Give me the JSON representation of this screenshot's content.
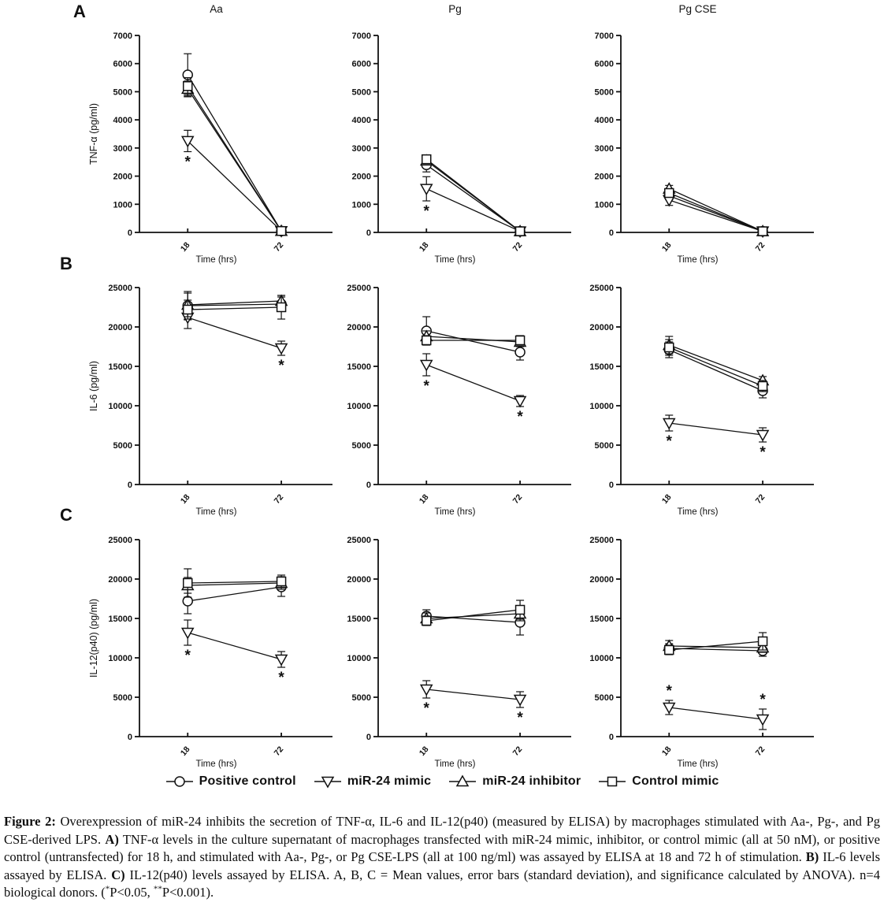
{
  "figure": {
    "panel_letters": [
      "A",
      "B",
      "C"
    ]
  },
  "legend": {
    "items": [
      {
        "label": "Positive control",
        "marker": "circle"
      },
      {
        "label": "miR-24 mimic",
        "marker": "triangle-down"
      },
      {
        "label": "miR-24 inhibitor",
        "marker": "triangle-up"
      },
      {
        "label": "Control mimic",
        "marker": "square"
      }
    ]
  },
  "caption": {
    "segments": [
      {
        "t": "Figure 2: ",
        "b": 1
      },
      {
        "t": "Overexpression of miR-24 inhibits the secretion of TNF-α, IL-6 and IL-12(p40) (measured by ELISA) by macrophages stimulated with Aa-, Pg-, and Pg CSE-derived LPS. "
      },
      {
        "t": "A)",
        "b": 1
      },
      {
        "t": " TNF-α levels in the culture supernatant of macrophages transfected with miR-24 mimic, inhibitor, or control mimic (all at 50 nM), or positive control (untransfected) for 18 h, and stimulated with Aa-, Pg-, or Pg CSE-LPS (all at 100 ng/ml) was assayed by ELISA at 18 and 72 h of stimulation. "
      },
      {
        "t": "B)",
        "b": 1
      },
      {
        "t": " IL-6 levels assayed by ELISA. "
      },
      {
        "t": "C)",
        "b": 1
      },
      {
        "t": " IL-12(p40) levels assayed by ELISA. A, B, C = Mean values, error bars (standard deviation), and significance calculated by ANOVA). n=4 biological donors. ("
      },
      {
        "t": "*",
        "sup": 1
      },
      {
        "t": "P<0.05, "
      },
      {
        "t": "**",
        "sup": 1
      },
      {
        "t": "P<0.001)."
      }
    ]
  },
  "chart_data": [
    {
      "id": "tnf-aa",
      "type": "line",
      "title": "Aa",
      "ylabel": "TNF-α (pg/ml)",
      "xlabel": "Time (hrs)",
      "categories": [
        "18",
        "72"
      ],
      "ylim": [
        0,
        7000
      ],
      "ystep": 1000,
      "grid": false,
      "series": [
        {
          "name": "Positive control",
          "marker": "circle",
          "values": [
            5600,
            50
          ],
          "errors": [
            750,
            60
          ],
          "sig": [
            null,
            null
          ]
        },
        {
          "name": "miR-24 mimic",
          "marker": "triangle-down",
          "values": [
            3250,
            50
          ],
          "errors": [
            380,
            60
          ],
          "sig": [
            "below",
            null
          ]
        },
        {
          "name": "miR-24 inhibitor",
          "marker": "triangle-up",
          "values": [
            5100,
            50
          ],
          "errors": [
            280,
            60
          ],
          "sig": [
            null,
            null
          ]
        },
        {
          "name": "Control mimic",
          "marker": "square",
          "values": [
            5200,
            50
          ],
          "errors": [
            300,
            60
          ],
          "sig": [
            null,
            null
          ]
        }
      ]
    },
    {
      "id": "tnf-pg",
      "type": "line",
      "title": "Pg",
      "ylabel": "",
      "xlabel": "Time (hrs)",
      "categories": [
        "18",
        "72"
      ],
      "ylim": [
        0,
        7000
      ],
      "ystep": 1000,
      "grid": false,
      "series": [
        {
          "name": "Positive control",
          "marker": "circle",
          "values": [
            2400,
            40
          ],
          "errors": [
            250,
            50
          ],
          "sig": [
            null,
            null
          ]
        },
        {
          "name": "miR-24 mimic",
          "marker": "triangle-down",
          "values": [
            1550,
            40
          ],
          "errors": [
            430,
            50
          ],
          "sig": [
            "below",
            null
          ]
        },
        {
          "name": "miR-24 inhibitor",
          "marker": "triangle-up",
          "values": [
            2550,
            40
          ],
          "errors": [
            150,
            50
          ],
          "sig": [
            null,
            null
          ]
        },
        {
          "name": "Control mimic",
          "marker": "square",
          "values": [
            2600,
            40
          ],
          "errors": [
            130,
            50
          ],
          "sig": [
            null,
            null
          ]
        }
      ]
    },
    {
      "id": "tnf-pgcse",
      "type": "line",
      "title": "Pg CSE",
      "ylabel": "",
      "xlabel": "Time (hrs)",
      "categories": [
        "18",
        "72"
      ],
      "ylim": [
        0,
        7000
      ],
      "ystep": 1000,
      "grid": false,
      "series": [
        {
          "name": "Positive control",
          "marker": "circle",
          "values": [
            1300,
            40
          ],
          "errors": [
            140,
            50
          ],
          "sig": [
            null,
            null
          ]
        },
        {
          "name": "miR-24 mimic",
          "marker": "triangle-down",
          "values": [
            1150,
            40
          ],
          "errors": [
            190,
            50
          ],
          "sig": [
            null,
            null
          ]
        },
        {
          "name": "miR-24 inhibitor",
          "marker": "triangle-up",
          "values": [
            1550,
            40
          ],
          "errors": [
            120,
            50
          ],
          "sig": [
            null,
            null
          ]
        },
        {
          "name": "Control mimic",
          "marker": "square",
          "values": [
            1400,
            40
          ],
          "errors": [
            110,
            50
          ],
          "sig": [
            null,
            null
          ]
        }
      ]
    },
    {
      "id": "il6-aa",
      "type": "line",
      "title": "",
      "ylabel": "IL-6 (pg/ml)",
      "xlabel": "Time (hrs)",
      "categories": [
        "18",
        "72"
      ],
      "ylim": [
        0,
        25000
      ],
      "ystep": 5000,
      "grid": false,
      "series": [
        {
          "name": "Positive control",
          "marker": "circle",
          "values": [
            22700,
            22900
          ],
          "errors": [
            1800,
            900
          ],
          "sig": [
            null,
            null
          ]
        },
        {
          "name": "miR-24 mimic",
          "marker": "triangle-down",
          "values": [
            21200,
            17300
          ],
          "errors": [
            1400,
            900
          ],
          "sig": [
            null,
            "below"
          ]
        },
        {
          "name": "miR-24 inhibitor",
          "marker": "triangle-up",
          "values": [
            22800,
            23300
          ],
          "errors": [
            1500,
            700
          ],
          "sig": [
            null,
            null
          ]
        },
        {
          "name": "Control mimic",
          "marker": "square",
          "values": [
            22200,
            22500
          ],
          "errors": [
            1200,
            1500
          ],
          "sig": [
            null,
            null
          ]
        }
      ]
    },
    {
      "id": "il6-pg",
      "type": "line",
      "title": "",
      "ylabel": "",
      "xlabel": "Time (hrs)",
      "categories": [
        "18",
        "72"
      ],
      "ylim": [
        0,
        25000
      ],
      "ystep": 5000,
      "grid": false,
      "series": [
        {
          "name": "Positive control",
          "marker": "circle",
          "values": [
            19500,
            16800
          ],
          "errors": [
            1800,
            1000
          ],
          "sig": [
            null,
            null
          ]
        },
        {
          "name": "miR-24 mimic",
          "marker": "triangle-down",
          "values": [
            15200,
            10600
          ],
          "errors": [
            1400,
            700
          ],
          "sig": [
            "below",
            "below"
          ]
        },
        {
          "name": "miR-24 inhibitor",
          "marker": "triangle-up",
          "values": [
            18800,
            18100
          ],
          "errors": [
            700,
            600
          ],
          "sig": [
            null,
            null
          ]
        },
        {
          "name": "Control mimic",
          "marker": "square",
          "values": [
            18300,
            18300
          ],
          "errors": [
            600,
            600
          ],
          "sig": [
            null,
            null
          ]
        }
      ]
    },
    {
      "id": "il6-pgcse",
      "type": "line",
      "title": "",
      "ylabel": "",
      "xlabel": "Time (hrs)",
      "categories": [
        "18",
        "72"
      ],
      "ylim": [
        0,
        25000
      ],
      "ystep": 5000,
      "grid": false,
      "series": [
        {
          "name": "Positive control",
          "marker": "circle",
          "values": [
            17100,
            11900
          ],
          "errors": [
            1000,
            900
          ],
          "sig": [
            null,
            null
          ]
        },
        {
          "name": "miR-24 mimic",
          "marker": "triangle-down",
          "values": [
            7800,
            6300
          ],
          "errors": [
            1000,
            900
          ],
          "sig": [
            "below",
            "below"
          ]
        },
        {
          "name": "miR-24 inhibitor",
          "marker": "triangle-up",
          "values": [
            17700,
            13200
          ],
          "errors": [
            1100,
            500
          ],
          "sig": [
            null,
            null
          ]
        },
        {
          "name": "Control mimic",
          "marker": "square",
          "values": [
            17400,
            12500
          ],
          "errors": [
            1000,
            700
          ],
          "sig": [
            null,
            null
          ]
        }
      ]
    },
    {
      "id": "il12-aa",
      "type": "line",
      "title": "",
      "ylabel": "IL-12(p40) (pg/ml)",
      "xlabel": "Time (hrs)",
      "categories": [
        "18",
        "72"
      ],
      "ylim": [
        0,
        25000
      ],
      "ystep": 5000,
      "grid": false,
      "series": [
        {
          "name": "Positive control",
          "marker": "circle",
          "values": [
            17200,
            19000
          ],
          "errors": [
            1600,
            1200
          ],
          "sig": [
            null,
            null
          ]
        },
        {
          "name": "miR-24 mimic",
          "marker": "triangle-down",
          "values": [
            13200,
            9800
          ],
          "errors": [
            1600,
            1000
          ],
          "sig": [
            "below",
            "below"
          ]
        },
        {
          "name": "miR-24 inhibitor",
          "marker": "triangle-up",
          "values": [
            19200,
            19500
          ],
          "errors": [
            1000,
            800
          ],
          "sig": [
            null,
            null
          ]
        },
        {
          "name": "Control mimic",
          "marker": "square",
          "values": [
            19500,
            19700
          ],
          "errors": [
            1800,
            800
          ],
          "sig": [
            null,
            null
          ]
        }
      ]
    },
    {
      "id": "il12-pg",
      "type": "line",
      "title": "",
      "ylabel": "",
      "xlabel": "Time (hrs)",
      "categories": [
        "18",
        "72"
      ],
      "ylim": [
        0,
        25000
      ],
      "ystep": 5000,
      "grid": false,
      "series": [
        {
          "name": "Positive control",
          "marker": "circle",
          "values": [
            15300,
            14500
          ],
          "errors": [
            800,
            1600
          ],
          "sig": [
            null,
            null
          ]
        },
        {
          "name": "miR-24 mimic",
          "marker": "triangle-down",
          "values": [
            6000,
            4700
          ],
          "errors": [
            1100,
            1000
          ],
          "sig": [
            "below",
            "below"
          ]
        },
        {
          "name": "miR-24 inhibitor",
          "marker": "triangle-up",
          "values": [
            15000,
            15600
          ],
          "errors": [
            700,
            900
          ],
          "sig": [
            null,
            null
          ]
        },
        {
          "name": "Control mimic",
          "marker": "square",
          "values": [
            14700,
            16100
          ],
          "errors": [
            600,
            1200
          ],
          "sig": [
            null,
            null
          ]
        }
      ]
    },
    {
      "id": "il12-pgcse",
      "type": "line",
      "title": "",
      "ylabel": "",
      "xlabel": "Time (hrs)",
      "categories": [
        "18",
        "72"
      ],
      "ylim": [
        0,
        25000
      ],
      "ystep": 5000,
      "grid": false,
      "series": [
        {
          "name": "Positive control",
          "marker": "circle",
          "values": [
            11200,
            10900
          ],
          "errors": [
            600,
            700
          ],
          "sig": [
            null,
            null
          ]
        },
        {
          "name": "miR-24 mimic",
          "marker": "triangle-down",
          "values": [
            3700,
            2200
          ],
          "errors": [
            900,
            1300
          ],
          "sig": [
            "above",
            "above"
          ]
        },
        {
          "name": "miR-24 inhibitor",
          "marker": "triangle-up",
          "values": [
            11500,
            11300
          ],
          "errors": [
            700,
            600
          ],
          "sig": [
            null,
            null
          ]
        },
        {
          "name": "Control mimic",
          "marker": "square",
          "values": [
            11000,
            12100
          ],
          "errors": [
            600,
            1100
          ],
          "sig": [
            null,
            null
          ]
        }
      ]
    }
  ]
}
